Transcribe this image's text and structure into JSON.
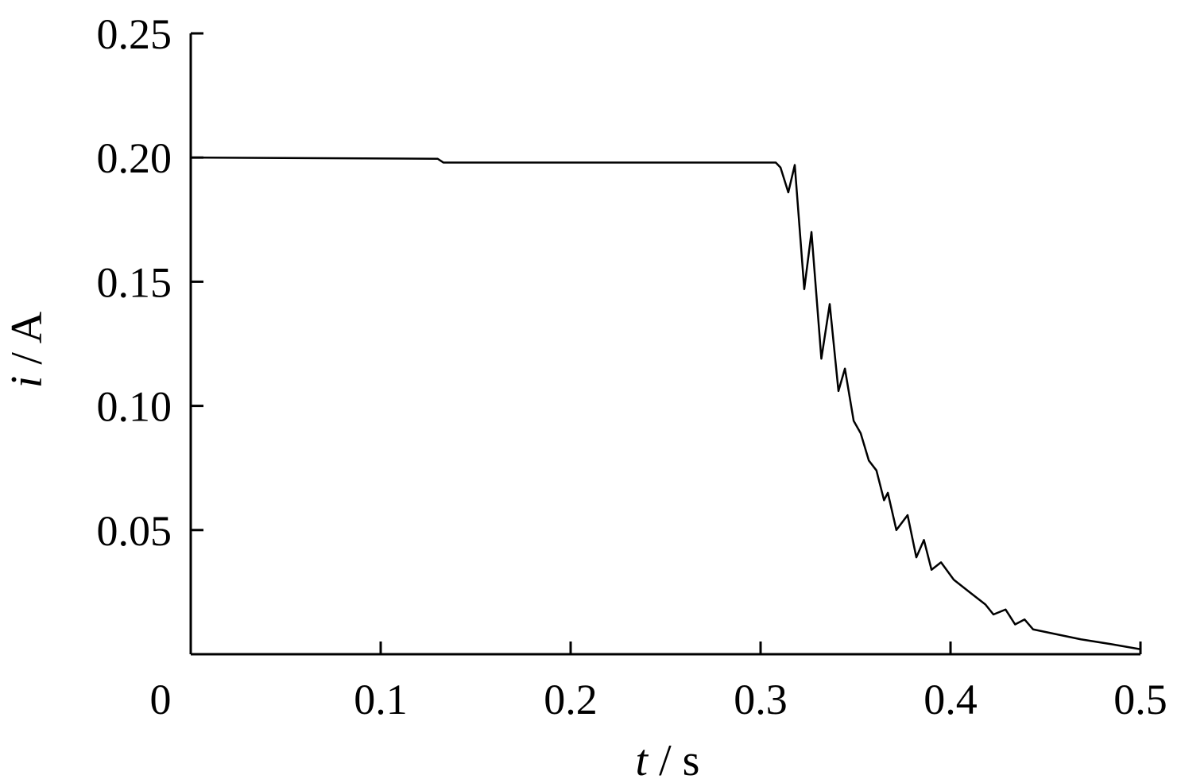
{
  "chart_data": {
    "type": "line",
    "xlabel": "t / s",
    "ylabel": "i / A",
    "x": [
      0,
      0.13,
      0.133,
      0.308,
      0.3105,
      0.3146,
      0.318,
      0.323,
      0.3268,
      0.332,
      0.3364,
      0.341,
      0.3444,
      0.349,
      0.3527,
      0.357,
      0.361,
      0.365,
      0.367,
      0.3715,
      0.3774,
      0.382,
      0.386,
      0.39,
      0.395,
      0.4017,
      0.41,
      0.4184,
      0.4226,
      0.429,
      0.434,
      0.439,
      0.4435,
      0.456,
      0.4686,
      0.485,
      0.5
    ],
    "series": [
      {
        "color": "#000000",
        "values": [
          0.2,
          0.1995,
          0.198,
          0.198,
          0.196,
          0.186,
          0.197,
          0.147,
          0.17,
          0.119,
          0.141,
          0.106,
          0.115,
          0.094,
          0.089,
          0.078,
          0.074,
          0.062,
          0.065,
          0.05,
          0.056,
          0.039,
          0.046,
          0.034,
          0.037,
          0.03,
          0.025,
          0.02,
          0.016,
          0.018,
          0.012,
          0.014,
          0.01,
          0.008,
          0.006,
          0.004,
          0.002
        ]
      }
    ],
    "xlim": [
      0,
      0.5
    ],
    "ylim": [
      0,
      0.25
    ],
    "xticks": [
      0,
      0.1,
      0.2,
      0.3,
      0.4,
      0.5
    ],
    "yticks": [
      0.25,
      {
        "value": 0.2,
        "label": "0.20"
      },
      0.15,
      {
        "value": 0.1,
        "label": "0.10"
      },
      0.05
    ],
    "grid": false
  }
}
